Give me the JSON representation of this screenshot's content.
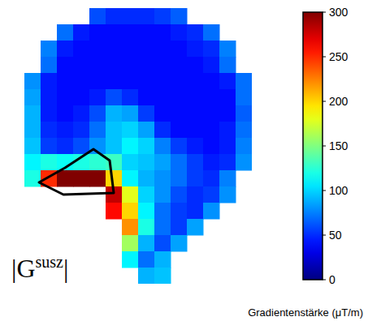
{
  "chart_data": {
    "type": "heatmap",
    "tick_labels": false,
    "annotation": {
      "base": "|G",
      "superscript": "susz",
      "end": "|"
    },
    "cells": [
      [
        null,
        null,
        null,
        null,
        null,
        60,
        50,
        50,
        50,
        55,
        65,
        null,
        null,
        null,
        null
      ],
      [
        null,
        null,
        null,
        70,
        45,
        40,
        40,
        40,
        40,
        40,
        45,
        50,
        70,
        null,
        null
      ],
      [
        null,
        null,
        75,
        45,
        40,
        40,
        40,
        40,
        40,
        40,
        40,
        45,
        50,
        75,
        null
      ],
      [
        null,
        null,
        70,
        40,
        40,
        40,
        40,
        40,
        40,
        40,
        40,
        40,
        45,
        70,
        null
      ],
      [
        null,
        80,
        45,
        40,
        40,
        40,
        40,
        40,
        40,
        40,
        40,
        40,
        40,
        45,
        70
      ],
      [
        null,
        85,
        45,
        40,
        40,
        45,
        60,
        50,
        40,
        40,
        40,
        40,
        40,
        40,
        70
      ],
      [
        null,
        90,
        45,
        40,
        45,
        60,
        90,
        85,
        55,
        40,
        40,
        40,
        40,
        40,
        65
      ],
      [
        null,
        90,
        50,
        45,
        50,
        70,
        95,
        100,
        85,
        50,
        40,
        40,
        40,
        45,
        70
      ],
      [
        null,
        95,
        55,
        50,
        60,
        80,
        95,
        110,
        100,
        75,
        55,
        45,
        40,
        45,
        75
      ],
      [
        null,
        110,
        120,
        115,
        120,
        125,
        130,
        100,
        95,
        85,
        70,
        55,
        45,
        50,
        80
      ],
      [
        null,
        120,
        250,
        300,
        300,
        300,
        200,
        110,
        90,
        80,
        70,
        55,
        50,
        75,
        null
      ],
      [
        null,
        null,
        null,
        null,
        null,
        null,
        280,
        180,
        100,
        80,
        60,
        50,
        55,
        80,
        null
      ],
      [
        null,
        null,
        null,
        null,
        null,
        null,
        260,
        200,
        110,
        70,
        55,
        50,
        80,
        null,
        null
      ],
      [
        null,
        null,
        null,
        null,
        null,
        null,
        null,
        220,
        120,
        70,
        55,
        85,
        null,
        null,
        null
      ],
      [
        null,
        null,
        null,
        null,
        null,
        null,
        null,
        160,
        90,
        60,
        85,
        null,
        null,
        null,
        null
      ],
      [
        null,
        null,
        null,
        null,
        null,
        null,
        null,
        110,
        70,
        90,
        null,
        null,
        null,
        null,
        null
      ],
      [
        null,
        null,
        null,
        null,
        null,
        null,
        null,
        null,
        90,
        95,
        null,
        null,
        null,
        null,
        null
      ]
    ],
    "colorbar": {
      "range": [
        0,
        300
      ],
      "ticks": [
        0,
        50,
        100,
        150,
        200,
        250,
        300
      ],
      "label": "Gradientenstärke (μT/m)"
    }
  }
}
